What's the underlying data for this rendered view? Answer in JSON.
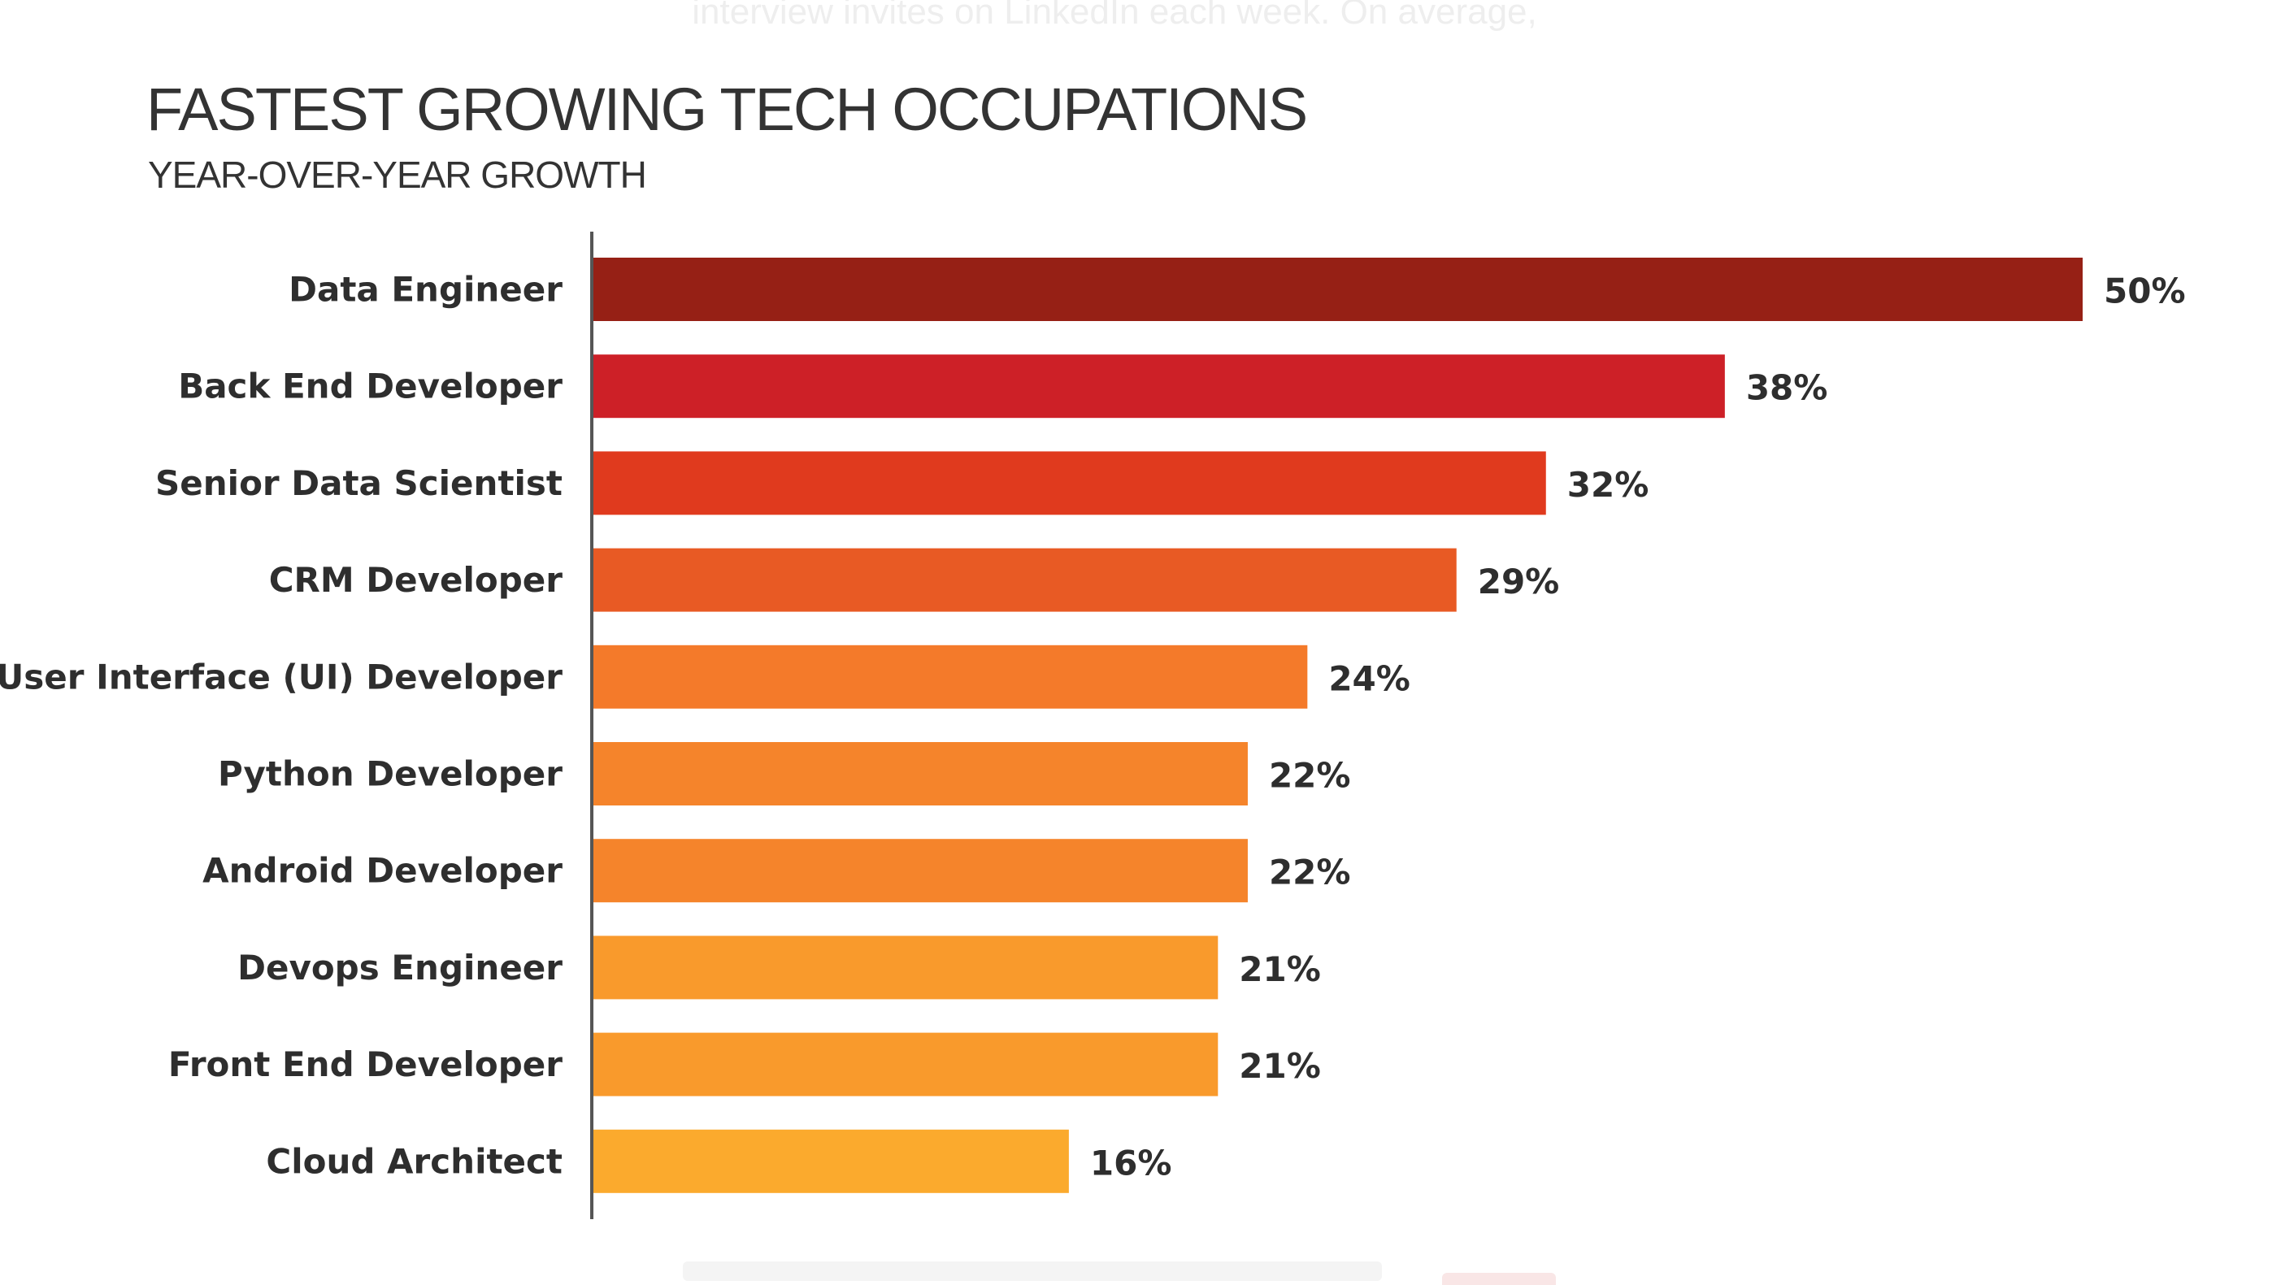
{
  "background_text": {
    "top": "interview invites on LinkedIn each week. On average,"
  },
  "chart_data": {
    "type": "bar",
    "orientation": "horizontal",
    "title": "FASTEST GROWING TECH OCCUPATIONS",
    "subtitle": "YEAR-OVER-YEAR GROWTH",
    "xlabel": "",
    "ylabel": "",
    "grid": false,
    "legend": "none",
    "xlim": [
      0,
      50
    ],
    "categories": [
      "Data Engineer",
      "Back End Developer",
      "Senior Data Scientist",
      "CRM Developer",
      "User Interface (UI) Developer",
      "Python Developer",
      "Android Developer",
      "Devops Engineer",
      "Front End Developer",
      "Cloud Architect"
    ],
    "values": [
      50,
      38,
      32,
      29,
      24,
      22,
      22,
      21,
      21,
      16
    ],
    "value_labels": [
      "50%",
      "38%",
      "32%",
      "29%",
      "24%",
      "22%",
      "22%",
      "21%",
      "21%",
      "16%"
    ],
    "colors": [
      "#962015",
      "#cd2027",
      "#e03a1e",
      "#e85a24",
      "#f47a2a",
      "#f5842b",
      "#f5842b",
      "#f99a2c",
      "#f99a2c",
      "#fbaa2d"
    ],
    "axis_color": "#555555"
  }
}
